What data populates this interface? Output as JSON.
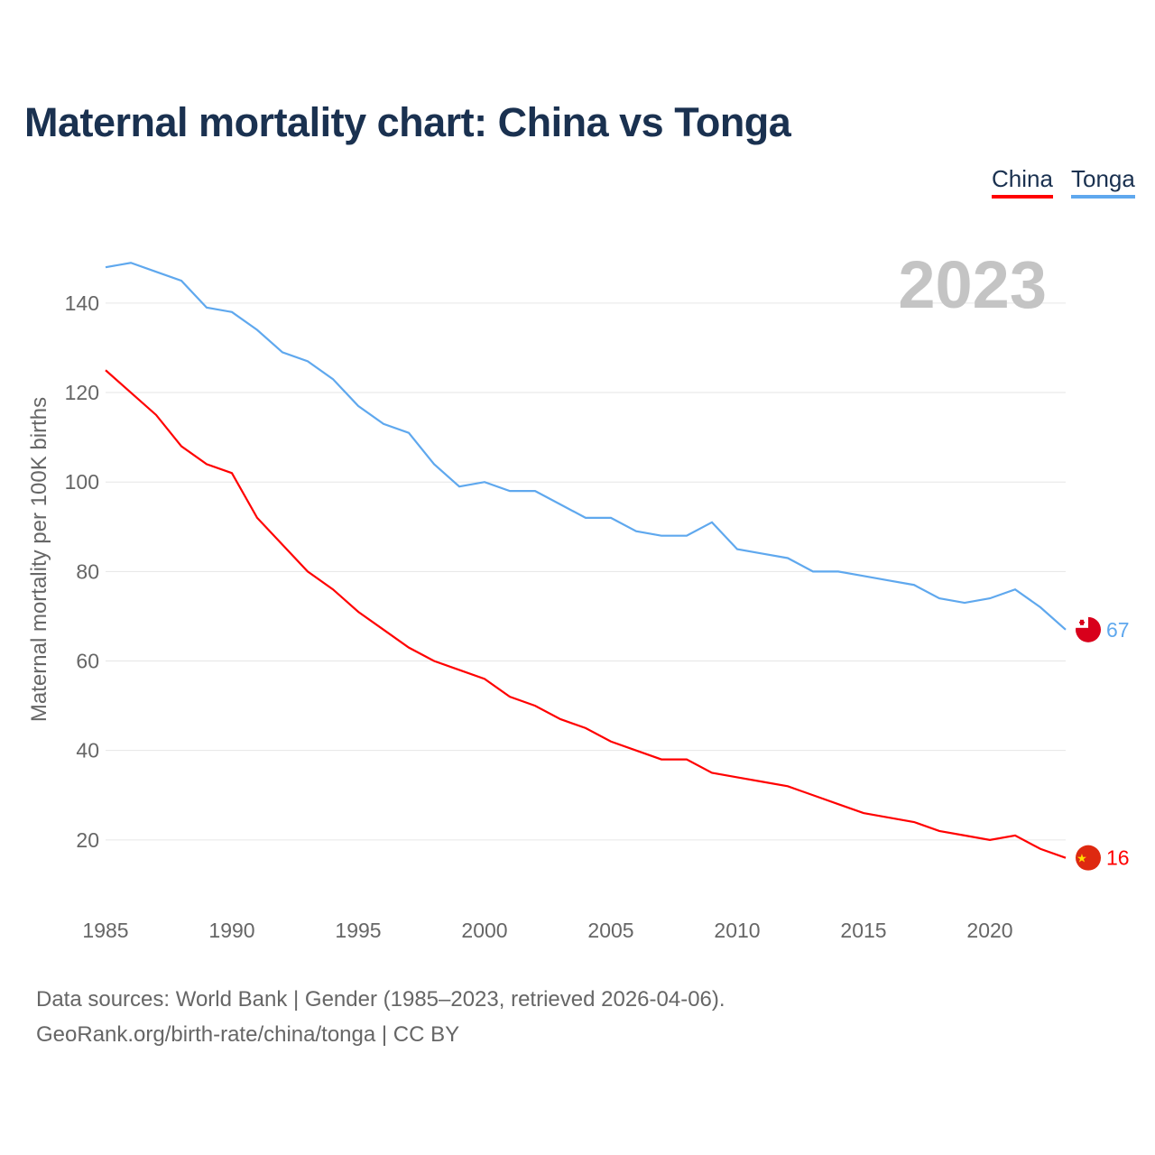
{
  "title": "Maternal mortality chart: China vs Tonga",
  "legend": {
    "china": "China",
    "tonga": "Tonga"
  },
  "year_label": "2023",
  "source": {
    "line1": "Data sources: World Bank | Gender (1985–2023, retrieved 2026-04-06).",
    "line2": "GeoRank.org/birth-rate/china/tonga | CC BY"
  },
  "chart_data": {
    "type": "line",
    "title": "Maternal mortality chart: China vs Tonga",
    "xlabel": "",
    "ylabel": "Maternal mortality per 100K births",
    "xlim": [
      1985,
      2023
    ],
    "ylim": [
      0,
      150
    ],
    "xticks": [
      1985,
      1990,
      1995,
      2000,
      2005,
      2010,
      2015,
      2020
    ],
    "yticks": [
      20,
      40,
      60,
      80,
      100,
      120,
      140
    ],
    "grid": true,
    "legend_position": "top-right",
    "x": [
      1985,
      1986,
      1987,
      1988,
      1989,
      1990,
      1991,
      1992,
      1993,
      1994,
      1995,
      1996,
      1997,
      1998,
      1999,
      2000,
      2001,
      2002,
      2003,
      2004,
      2005,
      2006,
      2007,
      2008,
      2009,
      2010,
      2011,
      2012,
      2013,
      2014,
      2015,
      2016,
      2017,
      2018,
      2019,
      2020,
      2021,
      2022,
      2023
    ],
    "series": [
      {
        "name": "China",
        "color": "#ff0000",
        "end_label": "16",
        "values": [
          125,
          120,
          115,
          108,
          104,
          102,
          92,
          86,
          80,
          76,
          71,
          67,
          63,
          60,
          58,
          56,
          52,
          50,
          47,
          45,
          42,
          40,
          38,
          38,
          35,
          34,
          33,
          32,
          30,
          28,
          26,
          25,
          24,
          22,
          21,
          20,
          21,
          18,
          16
        ]
      },
      {
        "name": "Tonga",
        "color": "#5fa8ee",
        "end_label": "67",
        "values": [
          148,
          149,
          147,
          145,
          139,
          138,
          134,
          129,
          127,
          123,
          117,
          113,
          111,
          104,
          99,
          100,
          98,
          98,
          95,
          92,
          92,
          89,
          88,
          88,
          91,
          85,
          84,
          83,
          80,
          80,
          79,
          78,
          77,
          74,
          73,
          74,
          76,
          72,
          67
        ]
      }
    ]
  }
}
